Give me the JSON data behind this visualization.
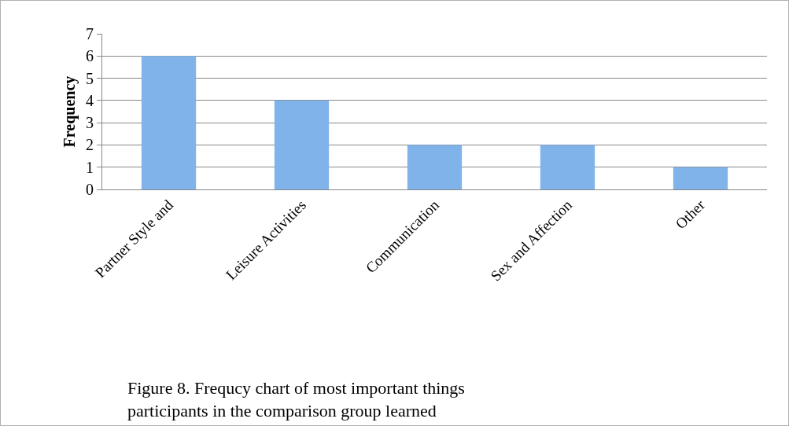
{
  "chart_data": {
    "type": "bar",
    "ylabel": "Frequency",
    "categories": [
      "Partner Style and",
      "Leisure Activities",
      "Communication",
      "Sex and Affection",
      "Other"
    ],
    "values": [
      6,
      4,
      2,
      2,
      1
    ],
    "color": "#7fb3ea",
    "ylim": [
      0,
      7
    ],
    "yticks": [
      0,
      1,
      2,
      3,
      4,
      5,
      6,
      7
    ],
    "grid": "y",
    "annotations": [
      "Figure 8. Frequcy chart of most important things participants in the comparison group learned"
    ]
  }
}
